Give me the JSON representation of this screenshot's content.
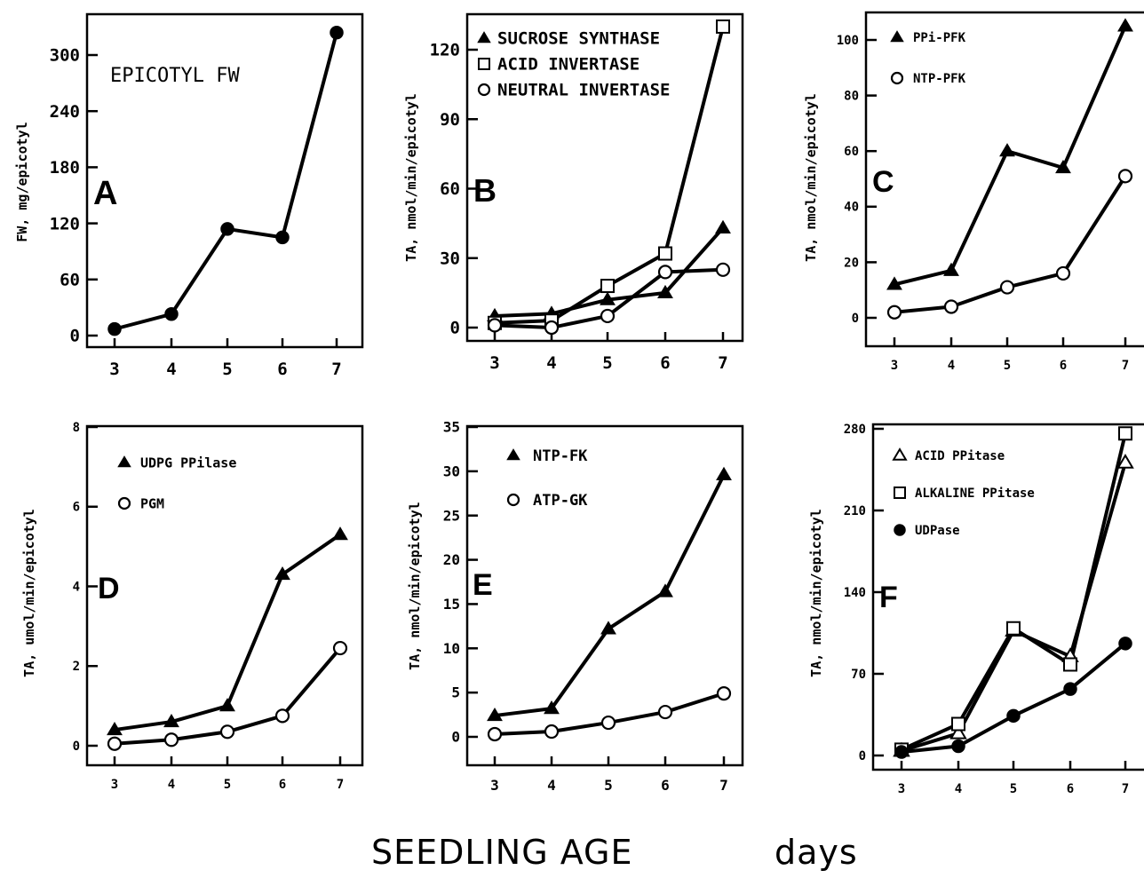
{
  "figure": {
    "xlabel_main": "SEEDLING   AGE",
    "xlabel_unit": "days"
  },
  "chart_data": [
    {
      "panel": "A",
      "type": "line",
      "ylabel": "FW,  mg/epicotyl",
      "inset_label": "EPICOTYL FW",
      "x": [
        3,
        4,
        5,
        6,
        7
      ],
      "xlim": [
        2.6,
        7.4
      ],
      "ylim": [
        -10,
        330
      ],
      "yticks": [
        0,
        60,
        120,
        180,
        240,
        300
      ],
      "series": [
        {
          "marker": "filled-circle",
          "values": [
            7,
            23,
            114,
            105,
            324
          ]
        }
      ]
    },
    {
      "panel": "B",
      "type": "line",
      "ylabel": "TA, nmol/min/epicotyl",
      "x": [
        3,
        4,
        5,
        6,
        7
      ],
      "xlim": [
        2.6,
        7.3
      ],
      "ylim": [
        -5,
        132
      ],
      "yticks": [
        0,
        30,
        60,
        90,
        120
      ],
      "series": [
        {
          "name": "SUCROSE SYNTHASE",
          "marker": "filled-triangle",
          "values": [
            5,
            6,
            12,
            15,
            43
          ]
        },
        {
          "name": "ACID INVERTASE",
          "marker": "open-square",
          "values": [
            2,
            3,
            18,
            32,
            130
          ]
        },
        {
          "name": "NEUTRAL INVERTASE",
          "marker": "open-circle",
          "values": [
            1,
            0,
            5,
            24,
            25
          ]
        }
      ]
    },
    {
      "panel": "C",
      "type": "line",
      "ylabel": "TA, nmol/min/epicotyl",
      "x": [
        3,
        4,
        5,
        6,
        7
      ],
      "xlim": [
        2.6,
        7.4
      ],
      "ylim": [
        -10,
        108
      ],
      "yticks": [
        0,
        20,
        40,
        60,
        80,
        100
      ],
      "series": [
        {
          "name": "PPi-PFK",
          "marker": "filled-triangle",
          "values": [
            12,
            17,
            60,
            54,
            105
          ]
        },
        {
          "name": "NTP-PFK",
          "marker": "open-circle",
          "values": [
            2,
            4,
            11,
            16,
            51
          ]
        }
      ]
    },
    {
      "panel": "D",
      "type": "line",
      "ylabel": "TA, umol/min/epicotyl",
      "x": [
        3,
        4,
        5,
        6,
        7
      ],
      "xlim": [
        2.6,
        7.4
      ],
      "ylim": [
        -0.3,
        8
      ],
      "yticks": [
        0,
        2,
        4,
        6,
        8
      ],
      "series": [
        {
          "name": "UDPG PPilase",
          "marker": "filled-triangle",
          "values": [
            0.4,
            0.6,
            1.0,
            4.3,
            5.3
          ]
        },
        {
          "name": "PGM",
          "marker": "open-circle",
          "values": [
            0.05,
            0.15,
            0.35,
            0.75,
            2.45
          ]
        }
      ]
    },
    {
      "panel": "E",
      "type": "line",
      "ylabel": "TA, nmol/min/epicotyl",
      "x": [
        3,
        4,
        5,
        6,
        7
      ],
      "xlim": [
        2.6,
        7.3
      ],
      "ylim": [
        -3,
        35
      ],
      "yticks": [
        0,
        5,
        10,
        15,
        20,
        25,
        30,
        35
      ],
      "series": [
        {
          "name": "NTP-FK",
          "marker": "filled-triangle",
          "values": [
            2.4,
            3.2,
            12.2,
            16.4,
            29.6
          ]
        },
        {
          "name": "ATP-GK",
          "marker": "open-circle",
          "values": [
            0.3,
            0.6,
            1.6,
            2.8,
            4.9
          ]
        }
      ]
    },
    {
      "panel": "F",
      "type": "line",
      "ylabel": "TA, nmol/min/epicotyl",
      "x": [
        3,
        4,
        5,
        6,
        7
      ],
      "xlim": [
        2.6,
        7.4
      ],
      "ylim": [
        -5,
        282
      ],
      "yticks": [
        0,
        70,
        140,
        210,
        280
      ],
      "series": [
        {
          "name": "ACID PPitase",
          "marker": "open-triangle",
          "values": [
            4,
            19,
            107,
            85,
            251
          ]
        },
        {
          "name": "ALKALINE PPitase",
          "marker": "open-square",
          "values": [
            5,
            27,
            109,
            78,
            276
          ]
        },
        {
          "name": "UDPase",
          "marker": "filled-circle",
          "values": [
            3,
            8,
            34,
            57,
            96
          ]
        }
      ]
    }
  ]
}
